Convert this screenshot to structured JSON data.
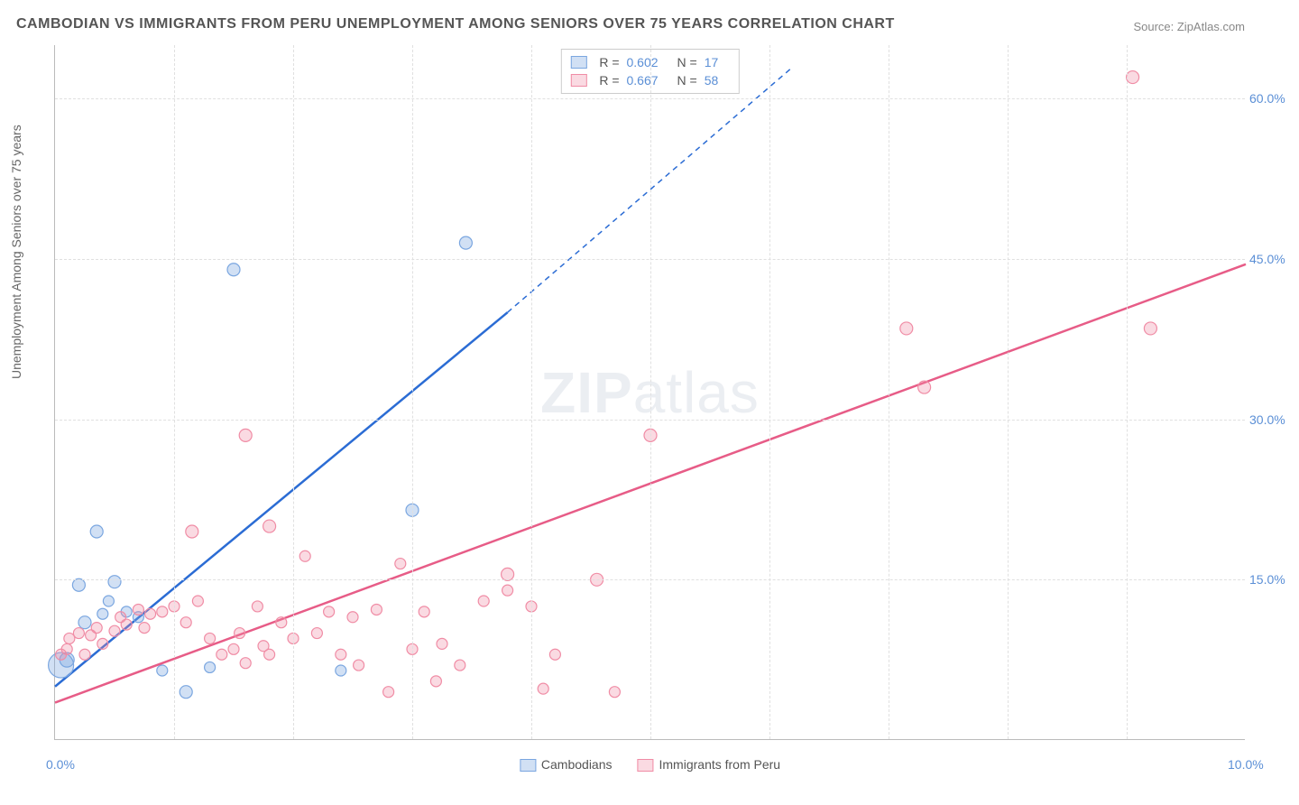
{
  "title": "CAMBODIAN VS IMMIGRANTS FROM PERU UNEMPLOYMENT AMONG SENIORS OVER 75 YEARS CORRELATION CHART",
  "source": "Source: ZipAtlas.com",
  "y_axis_label": "Unemployment Among Seniors over 75 years",
  "watermark": {
    "bold": "ZIP",
    "rest": "atlas"
  },
  "chart": {
    "type": "scatter-correlation",
    "xlim": [
      0,
      10
    ],
    "ylim": [
      0,
      65
    ],
    "x_ticks": [
      {
        "v": 0,
        "label": "0.0%"
      },
      {
        "v": 10,
        "label": "10.0%"
      }
    ],
    "y_ticks": [
      {
        "v": 15,
        "label": "15.0%"
      },
      {
        "v": 30,
        "label": "30.0%"
      },
      {
        "v": 45,
        "label": "45.0%"
      },
      {
        "v": 60,
        "label": "60.0%"
      }
    ],
    "v_grid": [
      1,
      2,
      3,
      4,
      5,
      6,
      7,
      8,
      9
    ],
    "background_color": "#ffffff",
    "grid_color": "#e0e0e0",
    "axis_color": "#bbbbbb",
    "tick_label_color": "#5b8fd6",
    "series": [
      {
        "name": "Cambodians",
        "color_fill": "rgba(122,166,224,0.35)",
        "color_stroke": "#7aa6e0",
        "line_color": "#2b6cd4",
        "R": "0.602",
        "N": "17",
        "points": [
          {
            "x": 0.05,
            "y": 7,
            "r": 14
          },
          {
            "x": 0.1,
            "y": 7.5,
            "r": 8
          },
          {
            "x": 0.2,
            "y": 14.5,
            "r": 7
          },
          {
            "x": 0.25,
            "y": 11,
            "r": 7
          },
          {
            "x": 0.4,
            "y": 11.8,
            "r": 6
          },
          {
            "x": 0.45,
            "y": 13,
            "r": 6
          },
          {
            "x": 0.5,
            "y": 14.8,
            "r": 7
          },
          {
            "x": 0.35,
            "y": 19.5,
            "r": 7
          },
          {
            "x": 0.6,
            "y": 12,
            "r": 6
          },
          {
            "x": 0.7,
            "y": 11.5,
            "r": 6
          },
          {
            "x": 0.9,
            "y": 6.5,
            "r": 6
          },
          {
            "x": 1.1,
            "y": 4.5,
            "r": 7
          },
          {
            "x": 1.3,
            "y": 6.8,
            "r": 6
          },
          {
            "x": 1.5,
            "y": 44,
            "r": 7
          },
          {
            "x": 2.4,
            "y": 6.5,
            "r": 6
          },
          {
            "x": 3.0,
            "y": 21.5,
            "r": 7
          },
          {
            "x": 3.45,
            "y": 46.5,
            "r": 7
          }
        ],
        "trend": {
          "x1": 0,
          "y1": 5,
          "x2": 3.8,
          "y2": 40,
          "dash_to_x": 6.2,
          "dash_to_y": 63
        }
      },
      {
        "name": "Immigrants from Peru",
        "color_fill": "rgba(240,140,165,0.32)",
        "color_stroke": "#f08ca5",
        "line_color": "#e75c87",
        "R": "0.667",
        "N": "58",
        "points": [
          {
            "x": 0.05,
            "y": 8,
            "r": 6
          },
          {
            "x": 0.1,
            "y": 8.5,
            "r": 6
          },
          {
            "x": 0.12,
            "y": 9.5,
            "r": 6
          },
          {
            "x": 0.2,
            "y": 10,
            "r": 6
          },
          {
            "x": 0.25,
            "y": 8,
            "r": 6
          },
          {
            "x": 0.3,
            "y": 9.8,
            "r": 6
          },
          {
            "x": 0.35,
            "y": 10.5,
            "r": 6
          },
          {
            "x": 0.4,
            "y": 9,
            "r": 6
          },
          {
            "x": 0.5,
            "y": 10.2,
            "r": 6
          },
          {
            "x": 0.55,
            "y": 11.5,
            "r": 6
          },
          {
            "x": 0.6,
            "y": 10.8,
            "r": 6
          },
          {
            "x": 0.7,
            "y": 12.2,
            "r": 6
          },
          {
            "x": 0.75,
            "y": 10.5,
            "r": 6
          },
          {
            "x": 0.8,
            "y": 11.8,
            "r": 6
          },
          {
            "x": 0.9,
            "y": 12,
            "r": 6
          },
          {
            "x": 1.0,
            "y": 12.5,
            "r": 6
          },
          {
            "x": 1.1,
            "y": 11,
            "r": 6
          },
          {
            "x": 1.15,
            "y": 19.5,
            "r": 7
          },
          {
            "x": 1.2,
            "y": 13,
            "r": 6
          },
          {
            "x": 1.3,
            "y": 9.5,
            "r": 6
          },
          {
            "x": 1.4,
            "y": 8,
            "r": 6
          },
          {
            "x": 1.5,
            "y": 8.5,
            "r": 6
          },
          {
            "x": 1.55,
            "y": 10,
            "r": 6
          },
          {
            "x": 1.6,
            "y": 7.2,
            "r": 6
          },
          {
            "x": 1.6,
            "y": 28.5,
            "r": 7
          },
          {
            "x": 1.7,
            "y": 12.5,
            "r": 6
          },
          {
            "x": 1.75,
            "y": 8.8,
            "r": 6
          },
          {
            "x": 1.8,
            "y": 20,
            "r": 7
          },
          {
            "x": 1.8,
            "y": 8,
            "r": 6
          },
          {
            "x": 1.9,
            "y": 11,
            "r": 6
          },
          {
            "x": 2.0,
            "y": 9.5,
            "r": 6
          },
          {
            "x": 2.1,
            "y": 17.2,
            "r": 6
          },
          {
            "x": 2.2,
            "y": 10,
            "r": 6
          },
          {
            "x": 2.3,
            "y": 12,
            "r": 6
          },
          {
            "x": 2.4,
            "y": 8,
            "r": 6
          },
          {
            "x": 2.5,
            "y": 11.5,
            "r": 6
          },
          {
            "x": 2.55,
            "y": 7,
            "r": 6
          },
          {
            "x": 2.7,
            "y": 12.2,
            "r": 6
          },
          {
            "x": 2.8,
            "y": 4.5,
            "r": 6
          },
          {
            "x": 2.9,
            "y": 16.5,
            "r": 6
          },
          {
            "x": 3.0,
            "y": 8.5,
            "r": 6
          },
          {
            "x": 3.1,
            "y": 12,
            "r": 6
          },
          {
            "x": 3.2,
            "y": 5.5,
            "r": 6
          },
          {
            "x": 3.25,
            "y": 9,
            "r": 6
          },
          {
            "x": 3.4,
            "y": 7,
            "r": 6
          },
          {
            "x": 3.6,
            "y": 13,
            "r": 6
          },
          {
            "x": 3.8,
            "y": 15.5,
            "r": 7
          },
          {
            "x": 3.8,
            "y": 14,
            "r": 6
          },
          {
            "x": 4.0,
            "y": 12.5,
            "r": 6
          },
          {
            "x": 4.1,
            "y": 4.8,
            "r": 6
          },
          {
            "x": 4.2,
            "y": 8,
            "r": 6
          },
          {
            "x": 4.55,
            "y": 15,
            "r": 7
          },
          {
            "x": 4.7,
            "y": 4.5,
            "r": 6
          },
          {
            "x": 5.0,
            "y": 28.5,
            "r": 7
          },
          {
            "x": 7.15,
            "y": 38.5,
            "r": 7
          },
          {
            "x": 7.3,
            "y": 33,
            "r": 7
          },
          {
            "x": 9.05,
            "y": 62,
            "r": 7
          },
          {
            "x": 9.2,
            "y": 38.5,
            "r": 7
          }
        ],
        "trend": {
          "x1": 0,
          "y1": 3.5,
          "x2": 10,
          "y2": 44.5
        }
      }
    ]
  }
}
